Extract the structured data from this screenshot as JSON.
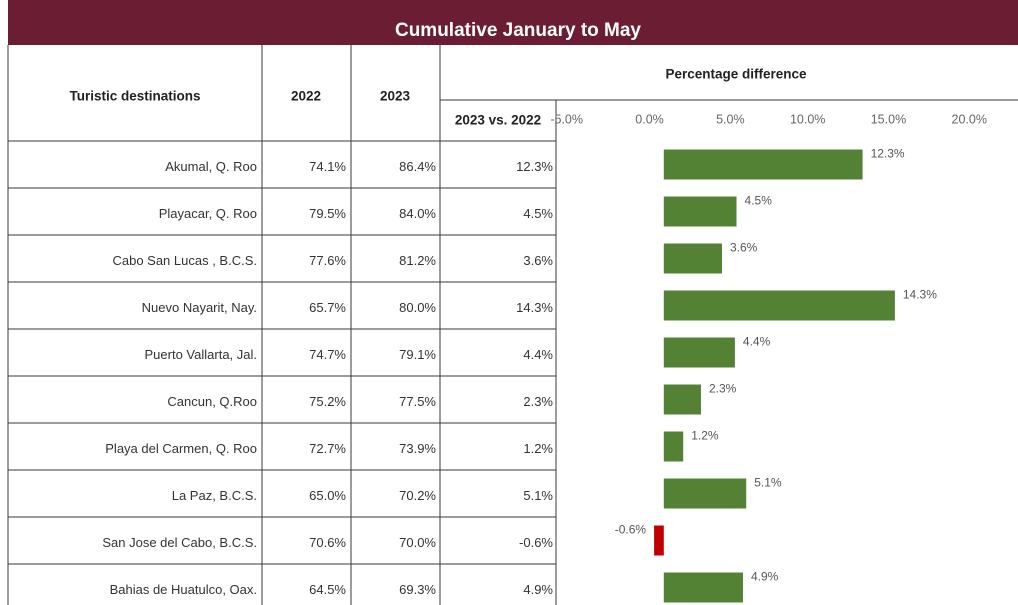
{
  "title": "Cumulative January to May",
  "table": {
    "headers": {
      "destination": "Turistic destinations",
      "y2022": "2022",
      "y2023": "2023",
      "group": "Percentage difference",
      "diff": "2023 vs. 2022"
    },
    "rows": [
      [
        "Akumal, Q. Roo",
        "74.1%",
        "86.4%",
        "12.3%"
      ],
      [
        "Playacar, Q. Roo",
        "79.5%",
        "84.0%",
        "4.5%"
      ],
      [
        "Cabo San Lucas , B.C.S.",
        "77.6%",
        "81.2%",
        "3.6%"
      ],
      [
        "Nuevo Nayarit, Nay.",
        "65.7%",
        "80.0%",
        "14.3%"
      ],
      [
        "Puerto Vallarta, Jal.",
        "74.7%",
        "79.1%",
        "4.4%"
      ],
      [
        "Cancun, Q.Roo",
        "75.2%",
        "77.5%",
        "2.3%"
      ],
      [
        "Playa del Carmen, Q. Roo",
        "72.7%",
        "73.9%",
        "1.2%"
      ],
      [
        "La Paz, B.C.S.",
        "65.0%",
        "70.2%",
        "5.1%"
      ],
      [
        "San Jose del Cabo, B.C.S.",
        "70.6%",
        "70.0%",
        "-0.6%"
      ],
      [
        "Bahias de Huatulco, Oax.",
        "64.5%",
        "69.3%",
        "4.9%"
      ]
    ]
  },
  "chart_data": {
    "type": "bar",
    "orientation": "horizontal",
    "values": [
      12.3,
      4.5,
      3.6,
      14.3,
      4.4,
      2.3,
      1.2,
      5.1,
      -0.6,
      4.9
    ],
    "value_labels": [
      "12.3%",
      "4.5%",
      "3.6%",
      "14.3%",
      "4.4%",
      "2.3%",
      "1.2%",
      "5.1%",
      "-0.6%",
      "4.9%"
    ],
    "color": "#548235",
    "negative_color": "#c00000",
    "xlim": [
      -5,
      20
    ],
    "xticks": [
      {
        "value": -5,
        "label": "-5.0%"
      },
      {
        "value": 0,
        "label": "0.0%"
      },
      {
        "value": 5,
        "label": "5.0%"
      },
      {
        "value": 10,
        "label": "10.0%"
      },
      {
        "value": 15,
        "label": "15.0%"
      },
      {
        "value": 20,
        "label": "20.0%"
      }
    ]
  }
}
